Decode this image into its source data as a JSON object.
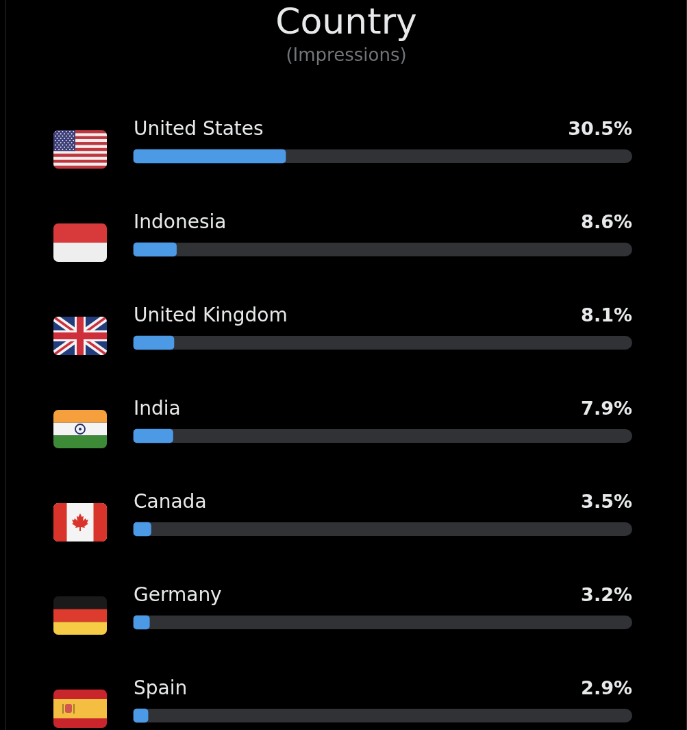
{
  "chart_data": {
    "type": "bar",
    "title": "Country",
    "subtitle": "(Impressions)",
    "orientation": "horizontal",
    "categories": [
      "United States",
      "Indonesia",
      "United Kingdom",
      "India",
      "Canada",
      "Germany",
      "Spain"
    ],
    "values": [
      30.5,
      8.6,
      8.1,
      7.9,
      3.5,
      3.2,
      2.9
    ],
    "value_labels": [
      "30.5%",
      "8.6%",
      "8.1%",
      "7.9%",
      "3.5%",
      "3.2%",
      "2.9%"
    ],
    "color": "#4c99e6",
    "xlim": [
      0,
      100
    ],
    "tick_labels": "y",
    "grid": false,
    "legend": false
  }
}
